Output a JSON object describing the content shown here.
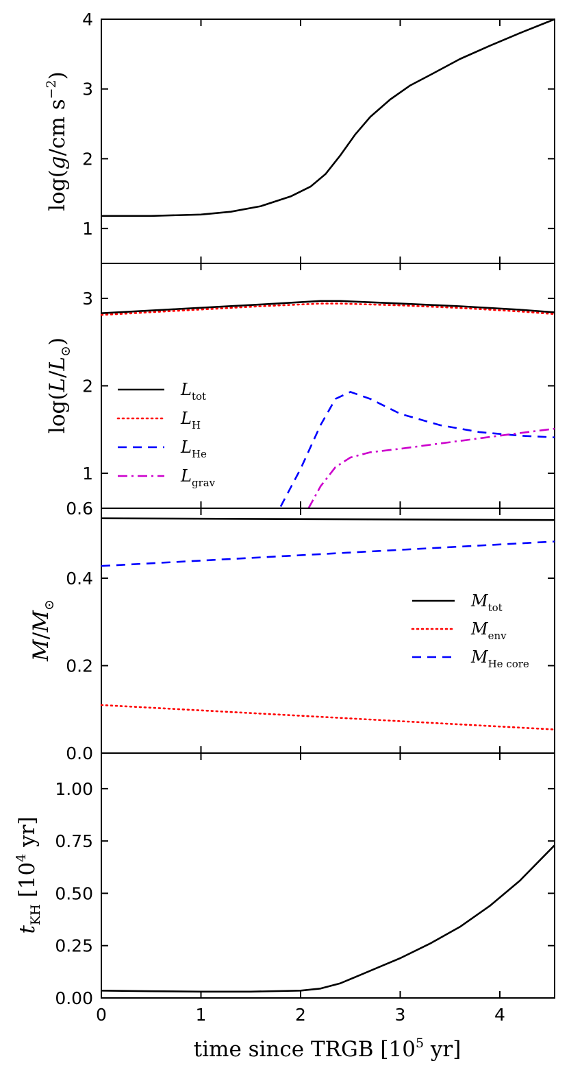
{
  "chart_data": [
    {
      "type": "line",
      "panel": "gravity",
      "ylabel_parts": [
        "log(",
        "g",
        "/cm s",
        "−2",
        ")"
      ],
      "ylim": [
        0.5,
        4.0
      ],
      "yticks": [
        1,
        2,
        3,
        4
      ],
      "ytick_labels": [
        "1",
        "2",
        "3",
        "4"
      ],
      "xlim": [
        0,
        4.55
      ],
      "series": [
        {
          "name": "log g",
          "color": "#000000",
          "dash": "solid",
          "x": [
            0,
            0.5,
            1.0,
            1.3,
            1.6,
            1.9,
            2.1,
            2.25,
            2.4,
            2.55,
            2.7,
            2.9,
            3.1,
            3.3,
            3.6,
            3.9,
            4.2,
            4.55
          ],
          "y": [
            1.18,
            1.18,
            1.2,
            1.24,
            1.32,
            1.46,
            1.6,
            1.78,
            2.05,
            2.35,
            2.6,
            2.85,
            3.05,
            3.2,
            3.43,
            3.62,
            3.8,
            4.0
          ]
        }
      ]
    },
    {
      "type": "line",
      "panel": "luminosity",
      "ylabel_parts": [
        "log(",
        "L",
        "/",
        "L",
        "⊙",
        ")"
      ],
      "ylim": [
        0.6,
        3.4
      ],
      "yticks": [
        0.6,
        1,
        2,
        3
      ],
      "ytick_labels": [
        "0.6",
        "1",
        "2",
        "3"
      ],
      "xlim": [
        0,
        4.55
      ],
      "legend_position": "center-left",
      "series": [
        {
          "name": "L",
          "sub": "tot",
          "color": "#000000",
          "dash": "solid",
          "x": [
            0,
            0.8,
            1.6,
            2.2,
            2.4,
            3.0,
            3.6,
            4.2,
            4.55
          ],
          "y": [
            2.83,
            2.88,
            2.93,
            2.97,
            2.97,
            2.94,
            2.91,
            2.87,
            2.84
          ]
        },
        {
          "name": "L",
          "sub": "H",
          "color": "#ff0000",
          "dash": "dotted",
          "x": [
            0,
            0.8,
            1.6,
            2.2,
            2.4,
            3.0,
            3.6,
            4.2,
            4.55
          ],
          "y": [
            2.81,
            2.86,
            2.91,
            2.94,
            2.94,
            2.92,
            2.89,
            2.85,
            2.82
          ]
        },
        {
          "name": "L",
          "sub": "He",
          "color": "#0000ff",
          "dash": "dashed",
          "x": [
            1.8,
            2.0,
            2.2,
            2.35,
            2.5,
            2.7,
            3.0,
            3.4,
            3.8,
            4.2,
            4.55
          ],
          "y": [
            0.62,
            1.05,
            1.55,
            1.85,
            1.93,
            1.85,
            1.68,
            1.55,
            1.47,
            1.43,
            1.41
          ]
        },
        {
          "name": "L",
          "sub": "grav",
          "color": "#cc00cc",
          "dash": "dashdot",
          "x": [
            2.08,
            2.2,
            2.35,
            2.5,
            2.7,
            3.0,
            3.4,
            3.8,
            4.2,
            4.55
          ],
          "y": [
            0.6,
            0.85,
            1.07,
            1.18,
            1.24,
            1.28,
            1.34,
            1.4,
            1.46,
            1.51
          ]
        }
      ]
    },
    {
      "type": "line",
      "panel": "mass",
      "ylabel_parts": [
        "M",
        "/",
        "M",
        "⊙"
      ],
      "ylim": [
        0.0,
        0.56
      ],
      "yticks": [
        0.0,
        0.2,
        0.4
      ],
      "ytick_labels": [
        "0.0",
        "0.2",
        "0.4"
      ],
      "xlim": [
        0,
        4.55
      ],
      "legend_position": "center-right",
      "series": [
        {
          "name": "M",
          "sub": "tot",
          "color": "#000000",
          "dash": "solid",
          "x": [
            0,
            4.55
          ],
          "y": [
            0.537,
            0.533
          ]
        },
        {
          "name": "M",
          "sub": "env",
          "color": "#ff0000",
          "dash": "dotted",
          "x": [
            0,
            4.55
          ],
          "y": [
            0.11,
            0.054
          ]
        },
        {
          "name": "M",
          "sub": "He core",
          "color": "#0000ff",
          "dash": "dashed",
          "x": [
            0,
            4.55
          ],
          "y": [
            0.428,
            0.484
          ]
        }
      ]
    },
    {
      "type": "line",
      "panel": "kelvin-helmholtz",
      "ylabel_parts": [
        "t",
        "KH",
        " [10",
        "4",
        " yr]"
      ],
      "ylim": [
        0.0,
        1.17
      ],
      "yticks": [
        0.0,
        0.25,
        0.5,
        0.75,
        1.0
      ],
      "ytick_labels": [
        "0.00",
        "0.25",
        "0.50",
        "0.75",
        "1.00"
      ],
      "xlim": [
        0,
        4.55
      ],
      "xticks": [
        0,
        1,
        2,
        3,
        4
      ],
      "xtick_labels": [
        "0",
        "1",
        "2",
        "3",
        "4"
      ],
      "xlabel_parts": [
        "time since TRGB [10",
        "5",
        " yr]"
      ],
      "series": [
        {
          "name": "t_KH",
          "color": "#000000",
          "dash": "solid",
          "x": [
            0,
            0.5,
            1.0,
            1.5,
            2.0,
            2.2,
            2.4,
            2.6,
            2.8,
            3.0,
            3.3,
            3.6,
            3.9,
            4.2,
            4.55
          ],
          "y": [
            0.035,
            0.032,
            0.03,
            0.03,
            0.035,
            0.045,
            0.07,
            0.11,
            0.15,
            0.19,
            0.26,
            0.34,
            0.44,
            0.56,
            0.73
          ]
        }
      ]
    }
  ]
}
